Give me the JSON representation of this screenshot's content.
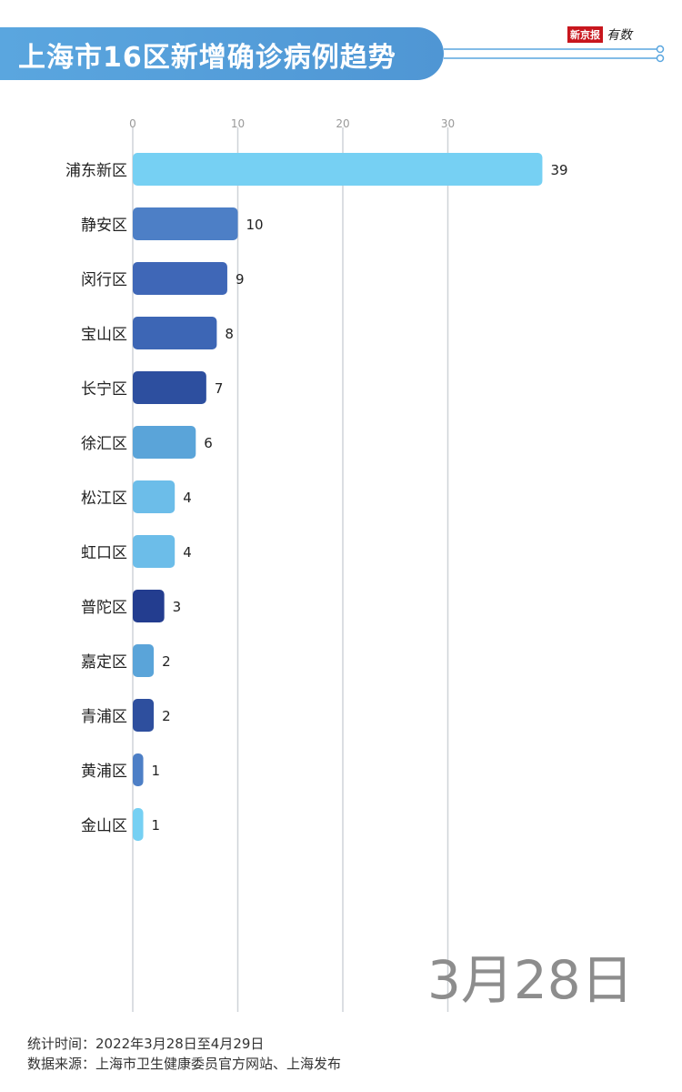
{
  "header": {
    "title": "上海市16区新增确诊病例趋势",
    "logo_publisher": "新京报",
    "logo_brand": "有数"
  },
  "chart_data": {
    "type": "bar",
    "orientation": "horizontal",
    "categories": [
      "浦东新区",
      "静安区",
      "闵行区",
      "宝山区",
      "长宁区",
      "徐汇区",
      "松江区",
      "虹口区",
      "普陀区",
      "嘉定区",
      "青浦区",
      "黄浦区",
      "金山区"
    ],
    "values": [
      39,
      10,
      9,
      8,
      7,
      6,
      4,
      4,
      3,
      2,
      2,
      1,
      1
    ],
    "bar_colors": [
      "#76d0f3",
      "#4d7fc6",
      "#3f67b7",
      "#3d66b5",
      "#2d4f9f",
      "#5aa4d9",
      "#6cbde9",
      "#6cbde9",
      "#233d8f",
      "#5aa4d9",
      "#2e4f9e",
      "#4d7fc6",
      "#76d0f3"
    ],
    "x_ticks": [
      0,
      10,
      20,
      30
    ],
    "xlim": [
      0,
      40
    ],
    "grid": true
  },
  "date_label": "3月28日",
  "footer": {
    "period": "统计时间：2022年3月28日至4月29日",
    "source": "数据来源：上海市卫生健康委员官方网站、上海发布"
  }
}
